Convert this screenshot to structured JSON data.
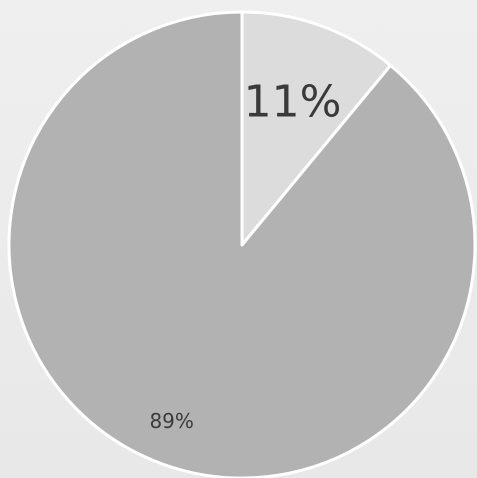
{
  "chart_data": {
    "type": "pie",
    "slices": [
      {
        "label": "11%",
        "value": 11,
        "color": "#dcdcdc"
      },
      {
        "label": "89%",
        "value": 89,
        "color": "#b2b2b2"
      }
    ],
    "border_color": "#ffffff",
    "label_color": "#3a3a3a",
    "legend": "none"
  }
}
